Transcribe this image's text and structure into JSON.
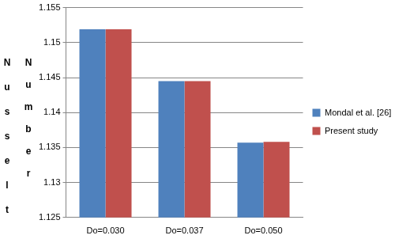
{
  "chart_data": {
    "type": "bar",
    "y_label": "Nusselt Number",
    "categories": [
      "Do=0.030",
      "Do=0.037",
      "Do=0.050"
    ],
    "series": [
      {
        "name": "Mondal et al. [26]",
        "color": "#4f81bd",
        "values": [
          1.1519,
          1.1445,
          1.1357
        ]
      },
      {
        "name": "Present study",
        "color": "#c0504d",
        "values": [
          1.1519,
          1.1445,
          1.1358
        ]
      }
    ],
    "ylim": [
      1.125,
      1.155
    ],
    "yticks": [
      1.125,
      1.13,
      1.135,
      1.14,
      1.145,
      1.15,
      1.155
    ],
    "grid": true,
    "legend": "right"
  }
}
